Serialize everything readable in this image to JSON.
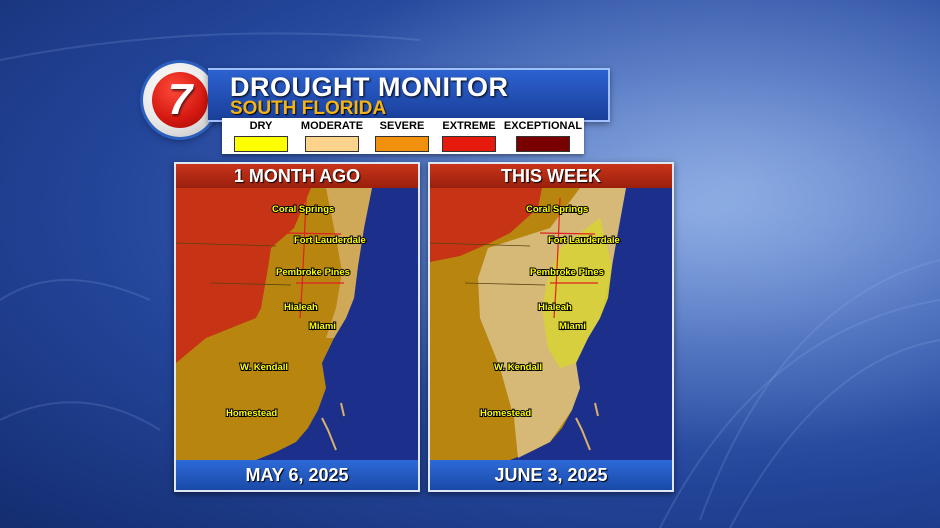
{
  "header": {
    "logo_number": "7",
    "title": "DROUGHT MONITOR",
    "subtitle": "SOUTH FLORIDA"
  },
  "legend": [
    {
      "label": "DRY",
      "color": "#ffff00"
    },
    {
      "label": "MODERATE",
      "color": "#fcd38c"
    },
    {
      "label": "SEVERE",
      "color": "#f0900c"
    },
    {
      "label": "EXTREME",
      "color": "#e61a0c"
    },
    {
      "label": "EXCEPTIONAL",
      "color": "#780000"
    }
  ],
  "panels": [
    {
      "heading": "1 MONTH AGO",
      "date": "MAY 6, 2025"
    },
    {
      "heading": "THIS WEEK",
      "date": "JUNE 3, 2025"
    }
  ],
  "cities": [
    "Coral Springs",
    "Fort Lauderdale",
    "Pembroke Pines",
    "Hialeah",
    "Miami",
    "W. Kendall",
    "Homestead"
  ],
  "colors": {
    "ocean": "#1c2f8a",
    "panel_header": "#b52a14",
    "date_bar": "#2359c0",
    "city_label": "#ffff00"
  }
}
